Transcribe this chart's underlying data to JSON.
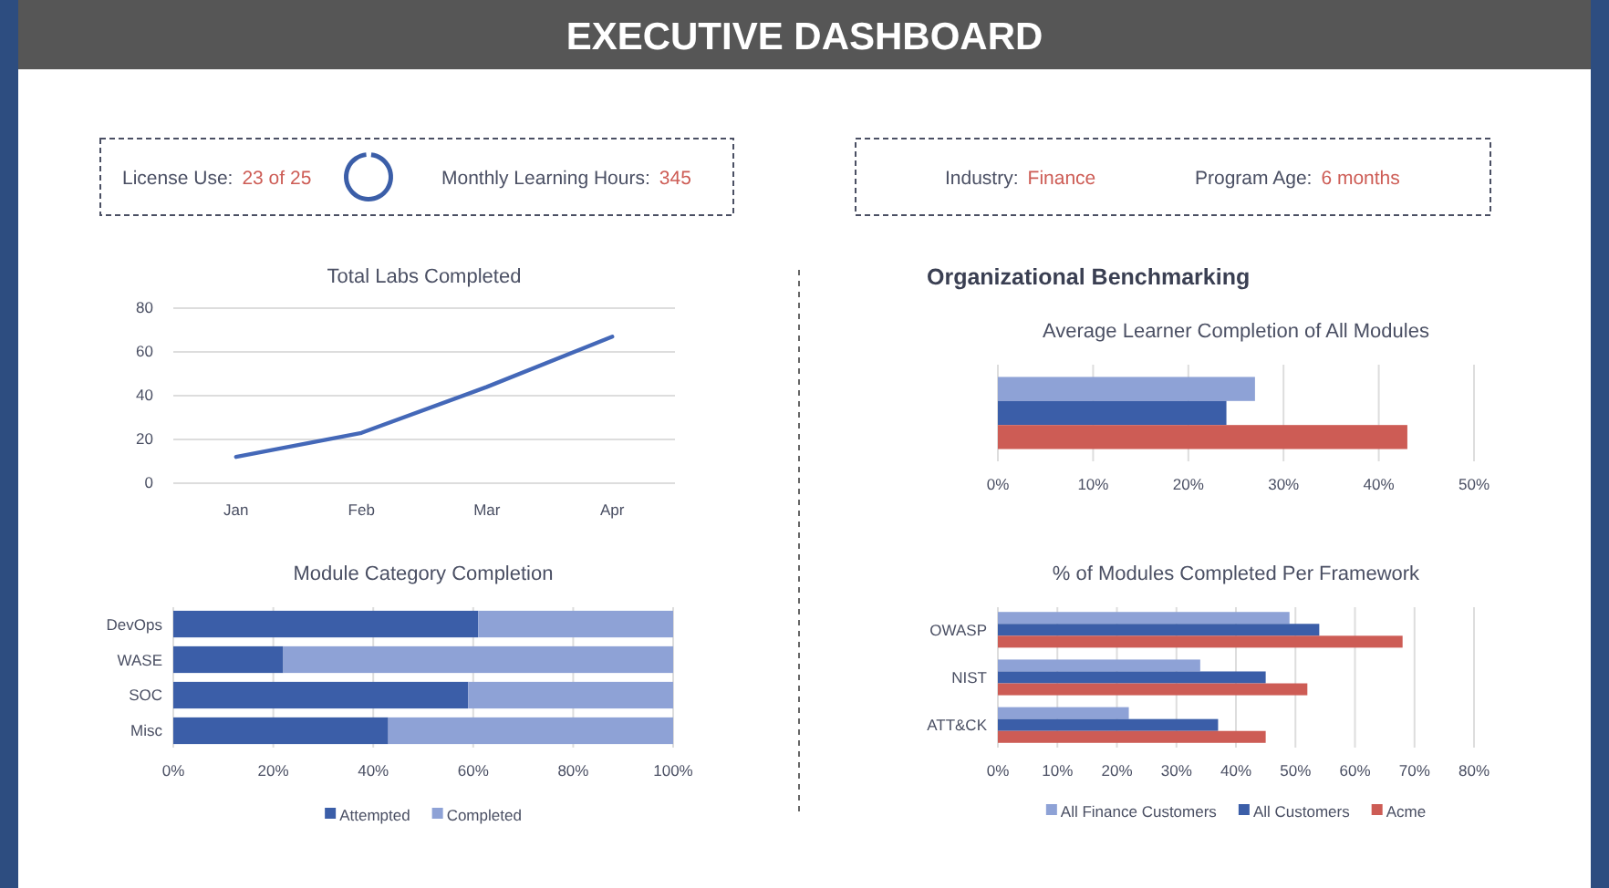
{
  "chart_data": [
    {
      "type": "other",
      "title": "EXECUTIVE DASHBOARD",
      "annotations": [
        "License Use:",
        "23 of 25",
        "Monthly Learning Hours:",
        "345"
      ]
    },
    {
      "type": "other",
      "annotations": [
        "Industry:",
        "Finance",
        "Program Age:",
        "6 months"
      ]
    },
    {
      "type": "line",
      "title": "Total Labs Completed",
      "categories": [
        "Jan",
        "Feb",
        "Mar",
        "Apr"
      ],
      "series": [
        {
          "color": "#4468b8",
          "values": [
            12,
            23,
            44,
            67
          ]
        }
      ],
      "ylim": [
        0,
        80
      ],
      "yticks": [
        0,
        20,
        40,
        60,
        80
      ],
      "grid": "y",
      "marker": "none",
      "line_style": "solid"
    },
    {
      "type": "bar",
      "orientation": "horizontal",
      "stacked": true,
      "title": "Module Category Completion",
      "categories": [
        "DevOps",
        "WASE",
        "SOC",
        "Misc"
      ],
      "series": [
        {
          "name": "Attempted",
          "color": "#3b5ea8",
          "values": [
            61,
            22,
            59,
            43
          ]
        },
        {
          "name": "Completed",
          "color": "#8ea2d6",
          "values": [
            39,
            78,
            41,
            57
          ]
        }
      ],
      "xlim": [
        0,
        100
      ],
      "xticks": [
        {
          "value": 0,
          "label": "0%"
        },
        {
          "value": 20,
          "label": "20%"
        },
        {
          "value": 40,
          "label": "40%"
        },
        {
          "value": 60,
          "label": "60%"
        },
        {
          "value": 80,
          "label": "80%"
        },
        {
          "value": 100,
          "label": "100%"
        }
      ],
      "grid": "x",
      "legend": "bottom"
    },
    {
      "type": "bar",
      "orientation": "horizontal",
      "title": "Organizational Benchmarking",
      "subtitle": "Average Learner Completion of All Modules",
      "categories": [
        null
      ],
      "series": [
        {
          "color": "#8ea2d6",
          "values": [
            27
          ]
        },
        {
          "color": "#3b5ea8",
          "values": [
            24
          ]
        },
        {
          "color": "#cd5c55",
          "values": [
            43
          ]
        }
      ],
      "xlim": [
        0,
        50
      ],
      "xticks": [
        {
          "value": 0,
          "label": "0%"
        },
        {
          "value": 10,
          "label": "10%"
        },
        {
          "value": 20,
          "label": "20%"
        },
        {
          "value": 30,
          "label": "30%"
        },
        {
          "value": 40,
          "label": "40%"
        },
        {
          "value": 50,
          "label": "50%"
        }
      ],
      "grid": "x"
    },
    {
      "type": "bar",
      "orientation": "horizontal",
      "title": "% of Modules Completed Per Framework",
      "categories": [
        "OWASP",
        "NIST",
        "ATT&CK"
      ],
      "series": [
        {
          "name": "All Finance Customers",
          "color": "#8ea2d6",
          "values": [
            49,
            34,
            22
          ]
        },
        {
          "name": "All Customers",
          "color": "#3b5ea8",
          "values": [
            54,
            45,
            37
          ]
        },
        {
          "name": "Acme",
          "color": "#cd5c55",
          "values": [
            68,
            52,
            45
          ]
        }
      ],
      "xlim": [
        0,
        80
      ],
      "xticks": [
        {
          "value": 0,
          "label": "0%"
        },
        {
          "value": 10,
          "label": "10%"
        },
        {
          "value": 20,
          "label": "20%"
        },
        {
          "value": 30,
          "label": "30%"
        },
        {
          "value": 40,
          "label": "40%"
        },
        {
          "value": 50,
          "label": "50%"
        },
        {
          "value": 60,
          "label": "60%"
        },
        {
          "value": 70,
          "label": "70%"
        },
        {
          "value": 80,
          "label": "80%"
        }
      ],
      "grid": "x",
      "legend": "bottom"
    }
  ]
}
